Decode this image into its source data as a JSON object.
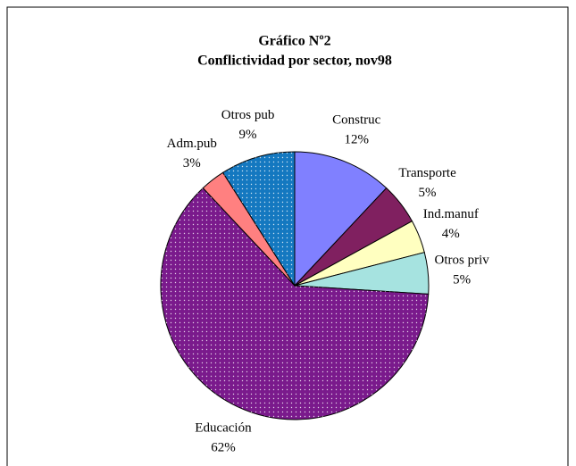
{
  "chart_data": {
    "type": "pie",
    "title": "Gráfico Nº2",
    "subtitle": "Conflictividad por sector, nov98",
    "categories": [
      "Construc",
      "Transporte",
      "Ind.manuf",
      "Otros priv",
      "Educación",
      "Adm.pub",
      "Otros pub"
    ],
    "values": [
      12,
      5,
      4,
      5,
      62,
      3,
      9
    ],
    "value_labels": [
      "12%",
      "5%",
      "4%",
      "5%",
      "62%",
      "3%",
      "9%"
    ],
    "colors": [
      "#8080ff",
      "#802060",
      "#ffffc0",
      "#a6e3e0",
      "#7a1a8c",
      "#ff8080",
      "#1478c0"
    ],
    "dotted": [
      false,
      false,
      false,
      false,
      true,
      false,
      true
    ]
  }
}
